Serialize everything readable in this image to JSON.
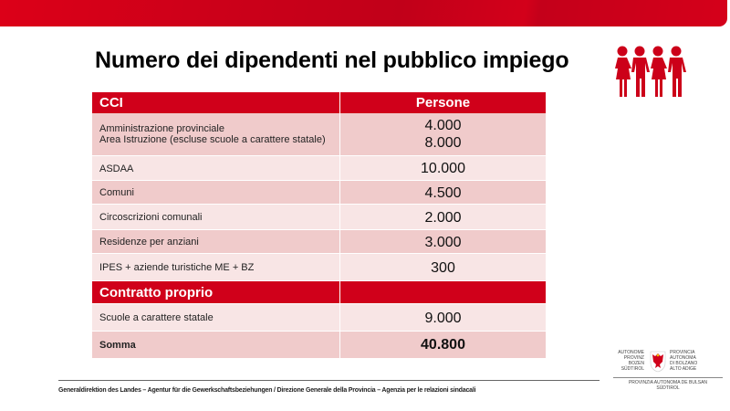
{
  "slide": {
    "title": "Numero dei dipendenti nel pubblico impiego",
    "accent_color": "#d0001a",
    "icon": "people-group-icon"
  },
  "table": {
    "headers": [
      "CCI",
      "Persone"
    ],
    "rows": [
      {
        "label": [
          "Amministrazione provinciale",
          "Area Istruzione  (escluse scuole a carattere statale)"
        ],
        "values": [
          "4.000",
          "8.000"
        ]
      },
      {
        "label": [
          "ASDAA"
        ],
        "values": [
          "10.000"
        ]
      },
      {
        "label": [
          "Comuni"
        ],
        "values": [
          "4.500"
        ]
      },
      {
        "label": [
          "Circoscrizioni comunali"
        ],
        "values": [
          "2.000"
        ]
      },
      {
        "label": [
          "Residenze per anziani"
        ],
        "values": [
          "3.000"
        ]
      },
      {
        "label": [
          "IPES + aziende turistiche ME + BZ"
        ],
        "values": [
          "300"
        ]
      }
    ],
    "section2_header": "Contratto proprio",
    "section2_rows": [
      {
        "label": "Scuole a carattere statale",
        "value": "9.000"
      }
    ],
    "total": {
      "label": "Somma",
      "value": "40.800"
    }
  },
  "footer": {
    "text": "Generaldirektion des Landes – Agentur für die Gewerkschaftsbeziehungen / Direzione Generale della Provincia – Agenzia per le relazioni sindacali"
  },
  "logo": {
    "left": [
      "AUTONOME",
      "PROVINZ",
      "BOZEN",
      "SÜDTIROL"
    ],
    "right": [
      "PROVINCIA",
      "AUTONOMA",
      "DI BOLZANO",
      "ALTO ADIGE"
    ],
    "bottom": [
      "PROVINZIA AUTONOMA DE BULSAN",
      "SÜDTIROL"
    ]
  }
}
